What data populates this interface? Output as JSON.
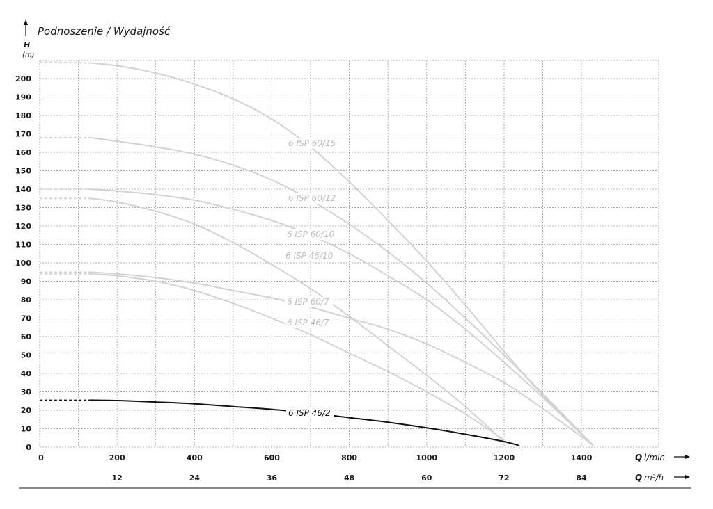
{
  "chart_data": {
    "type": "line",
    "title": "Podnoszenie / Wydajność",
    "y_axis": {
      "symbol": "H",
      "unit": "(m)",
      "ylim": [
        0,
        210
      ],
      "ticks": [
        0,
        10,
        20,
        30,
        40,
        50,
        60,
        70,
        80,
        90,
        100,
        110,
        120,
        130,
        140,
        150,
        160,
        170,
        180,
        190,
        200
      ]
    },
    "x_axis": {
      "symbol": "Q",
      "unit": "l/min",
      "xlim": [
        0,
        1600
      ],
      "ticks": [
        0,
        200,
        400,
        600,
        800,
        1000,
        1200,
        1400
      ]
    },
    "x2_axis": {
      "symbol": "Q",
      "unit": "m³/h",
      "ticks": [
        12,
        24,
        36,
        48,
        60,
        72,
        84
      ],
      "tick_positions_lmin": [
        200,
        400,
        600,
        800,
        1000,
        1200,
        1400
      ]
    },
    "grid": true,
    "series": [
      {
        "name": "6 ISP 60/15",
        "color": "#d2d2d2",
        "dashed_until": 130,
        "points": [
          [
            0,
            209
          ],
          [
            130,
            208.5
          ],
          [
            200,
            207
          ],
          [
            300,
            203
          ],
          [
            400,
            197
          ],
          [
            500,
            189
          ],
          [
            600,
            178
          ],
          [
            700,
            163
          ],
          [
            800,
            144
          ],
          [
            900,
            123
          ],
          [
            1000,
            101
          ],
          [
            1100,
            77
          ],
          [
            1200,
            52
          ],
          [
            1300,
            28
          ],
          [
            1430,
            1
          ]
        ]
      },
      {
        "name": "6 ISP 60/12",
        "color": "#d2d2d2",
        "dashed_until": 130,
        "points": [
          [
            0,
            168
          ],
          [
            130,
            168
          ],
          [
            200,
            166
          ],
          [
            300,
            163
          ],
          [
            400,
            159
          ],
          [
            500,
            153
          ],
          [
            600,
            145
          ],
          [
            700,
            134
          ],
          [
            800,
            121
          ],
          [
            900,
            106
          ],
          [
            1000,
            89
          ],
          [
            1100,
            70
          ],
          [
            1200,
            50
          ],
          [
            1300,
            29
          ],
          [
            1430,
            1
          ]
        ]
      },
      {
        "name": "6 ISP 60/10",
        "color": "#d2d2d2",
        "dashed_until": 130,
        "points": [
          [
            0,
            140
          ],
          [
            130,
            140
          ],
          [
            200,
            139
          ],
          [
            300,
            137
          ],
          [
            400,
            134
          ],
          [
            500,
            129
          ],
          [
            600,
            123
          ],
          [
            700,
            115
          ],
          [
            800,
            105
          ],
          [
            900,
            93
          ],
          [
            1000,
            80
          ],
          [
            1100,
            64
          ],
          [
            1200,
            46
          ],
          [
            1300,
            27
          ],
          [
            1430,
            1
          ]
        ]
      },
      {
        "name": "6 ISP 46/10",
        "color": "#d2d2d2",
        "dashed_until": 130,
        "points": [
          [
            0,
            135
          ],
          [
            130,
            135
          ],
          [
            200,
            133
          ],
          [
            300,
            128
          ],
          [
            400,
            121
          ],
          [
            500,
            111
          ],
          [
            600,
            99
          ],
          [
            700,
            86
          ],
          [
            800,
            71
          ],
          [
            900,
            55
          ],
          [
            1000,
            39
          ],
          [
            1100,
            22
          ],
          [
            1200,
            3
          ]
        ]
      },
      {
        "name": "6 ISP 60/7",
        "color": "#d2d2d2",
        "dashed_until": 130,
        "points": [
          [
            0,
            95
          ],
          [
            130,
            95
          ],
          [
            200,
            94
          ],
          [
            300,
            92
          ],
          [
            400,
            89
          ],
          [
            500,
            85
          ],
          [
            600,
            81
          ],
          [
            700,
            76
          ],
          [
            800,
            70
          ],
          [
            900,
            64
          ],
          [
            1000,
            56
          ],
          [
            1100,
            46
          ],
          [
            1200,
            35
          ],
          [
            1300,
            21
          ],
          [
            1430,
            1
          ]
        ]
      },
      {
        "name": "6 ISP 46/7",
        "color": "#d2d2d2",
        "dashed_until": 130,
        "points": [
          [
            0,
            94
          ],
          [
            130,
            94
          ],
          [
            200,
            93
          ],
          [
            300,
            90
          ],
          [
            400,
            85
          ],
          [
            500,
            78
          ],
          [
            600,
            70
          ],
          [
            700,
            61
          ],
          [
            800,
            51
          ],
          [
            900,
            41
          ],
          [
            1000,
            30
          ],
          [
            1100,
            18
          ],
          [
            1200,
            4
          ]
        ]
      },
      {
        "name": "6 ISP 46/2",
        "color": "#111111",
        "dashed_until": 130,
        "points": [
          [
            0,
            25.5
          ],
          [
            130,
            25.5
          ],
          [
            200,
            25.3
          ],
          [
            300,
            24.5
          ],
          [
            400,
            23.5
          ],
          [
            500,
            22
          ],
          [
            600,
            20.5
          ],
          [
            700,
            18.5
          ],
          [
            800,
            16
          ],
          [
            900,
            13.5
          ],
          [
            1000,
            10.5
          ],
          [
            1100,
            7
          ],
          [
            1200,
            3
          ],
          [
            1240,
            0.8
          ]
        ]
      }
    ]
  },
  "labels": {
    "title": "Podnoszenie / Wydajność",
    "y_symbol": "H",
    "y_unit": "(m)",
    "x_symbol": "Q",
    "x_unit": "l/min",
    "x2_symbol": "Q",
    "x2_unit": "m³/h"
  }
}
